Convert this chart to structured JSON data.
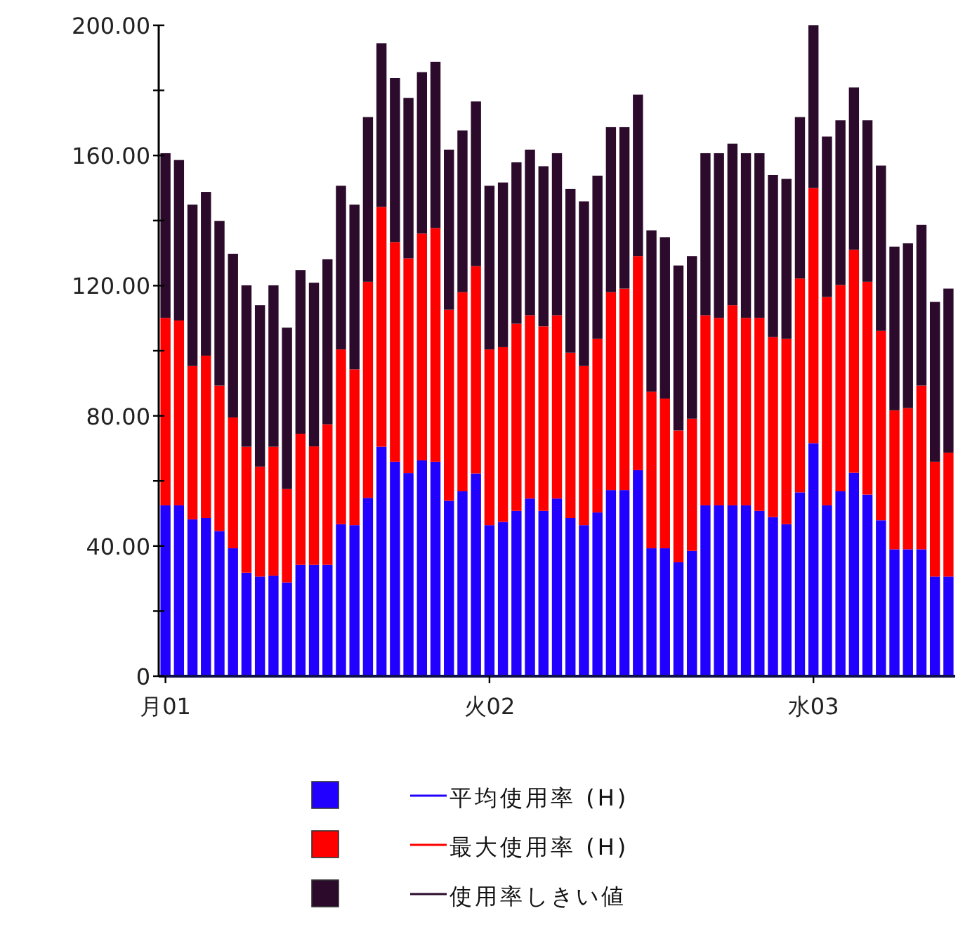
{
  "chart_data": {
    "type": "bar",
    "stacked": true,
    "legend": "bottom",
    "categories": [
      "月01",
      null,
      null,
      null,
      null,
      null,
      null,
      null,
      null,
      null,
      null,
      null,
      null,
      null,
      null,
      null,
      null,
      null,
      null,
      null,
      null,
      null,
      null,
      null,
      "火02",
      null,
      null,
      null,
      null,
      null,
      null,
      null,
      null,
      null,
      null,
      null,
      null,
      null,
      null,
      null,
      null,
      null,
      null,
      null,
      null,
      null,
      null,
      null,
      "水03",
      null,
      null,
      null,
      null,
      null,
      null,
      null,
      null,
      null,
      null
    ],
    "ylim": [
      0,
      200
    ],
    "yticks": [
      0,
      {
        "value": 20,
        "label": null
      },
      {
        "value": 40,
        "label": "40.00"
      },
      {
        "value": 60,
        "label": null
      },
      {
        "value": 80,
        "label": "80.00"
      },
      {
        "value": 100,
        "label": null
      },
      {
        "value": 120,
        "label": "120.00"
      },
      {
        "value": 140,
        "label": null
      },
      {
        "value": 160,
        "label": "160.00"
      },
      {
        "value": 180,
        "label": null
      },
      {
        "value": 200,
        "label": "200.00"
      }
    ],
    "series": [
      {
        "name": "平均使用率 (H)",
        "color": "#2200ff",
        "values": [
          52.5,
          52.5,
          48.2,
          48.6,
          44.6,
          39.3,
          31.8,
          30.6,
          30.9,
          28.8,
          34.2,
          34.2,
          34.2,
          46.7,
          46.4,
          54.8,
          70.5,
          65.9,
          62.4,
          66.3,
          65.9,
          53.9,
          56.8,
          62.3,
          46.4,
          47.4,
          50.8,
          54.6,
          50.8,
          54.6,
          48.6,
          46.4,
          50.3,
          57.2,
          57.2,
          63.3,
          39.3,
          39.3,
          35.0,
          38.5,
          52.5,
          52.5,
          52.5,
          52.5,
          50.8,
          48.9,
          46.7,
          56.5,
          71.6,
          52.5,
          56.8,
          62.5,
          55.8,
          47.9,
          39.0,
          39.0,
          39.0,
          30.6,
          30.6
        ]
      },
      {
        "name": "最大使用率 (H)",
        "color": "#ff0000",
        "values": [
          57.6,
          56.8,
          47.1,
          49.9,
          44.7,
          40.2,
          38.7,
          33.8,
          39.6,
          28.7,
          40.3,
          36.4,
          43.2,
          53.7,
          47.9,
          66.4,
          73.7,
          67.5,
          66.0,
          69.7,
          71.8,
          58.7,
          61.2,
          63.7,
          54.0,
          53.7,
          57.5,
          56.3,
          56.7,
          56.3,
          50.8,
          48.9,
          53.4,
          60.8,
          61.9,
          65.8,
          48.1,
          46.0,
          40.5,
          40.6,
          58.4,
          57.6,
          61.5,
          57.6,
          59.3,
          55.3,
          57.0,
          65.7,
          78.4,
          64.0,
          63.4,
          68.5,
          65.4,
          58.2,
          42.7,
          43.4,
          50.3,
          35.3,
          38.1
        ]
      },
      {
        "name": "使用率しきい値",
        "color": "#2b0a2b",
        "values": [
          50.6,
          49.3,
          49.6,
          50.3,
          50.6,
          50.3,
          49.6,
          49.6,
          49.6,
          49.6,
          50.3,
          50.3,
          50.7,
          50.3,
          50.6,
          50.6,
          50.3,
          50.4,
          49.3,
          49.6,
          51.1,
          49.2,
          49.7,
          50.6,
          50.3,
          50.6,
          49.6,
          50.9,
          49.2,
          49.8,
          50.3,
          50.6,
          50.1,
          50.7,
          49.6,
          49.6,
          49.6,
          49.6,
          50.7,
          50.0,
          49.8,
          50.6,
          49.6,
          50.6,
          50.6,
          49.8,
          49.1,
          49.6,
          50.0,
          49.3,
          50.6,
          49.9,
          49.6,
          50.8,
          50.3,
          50.6,
          49.4,
          49.1,
          50.4
        ]
      }
    ]
  }
}
